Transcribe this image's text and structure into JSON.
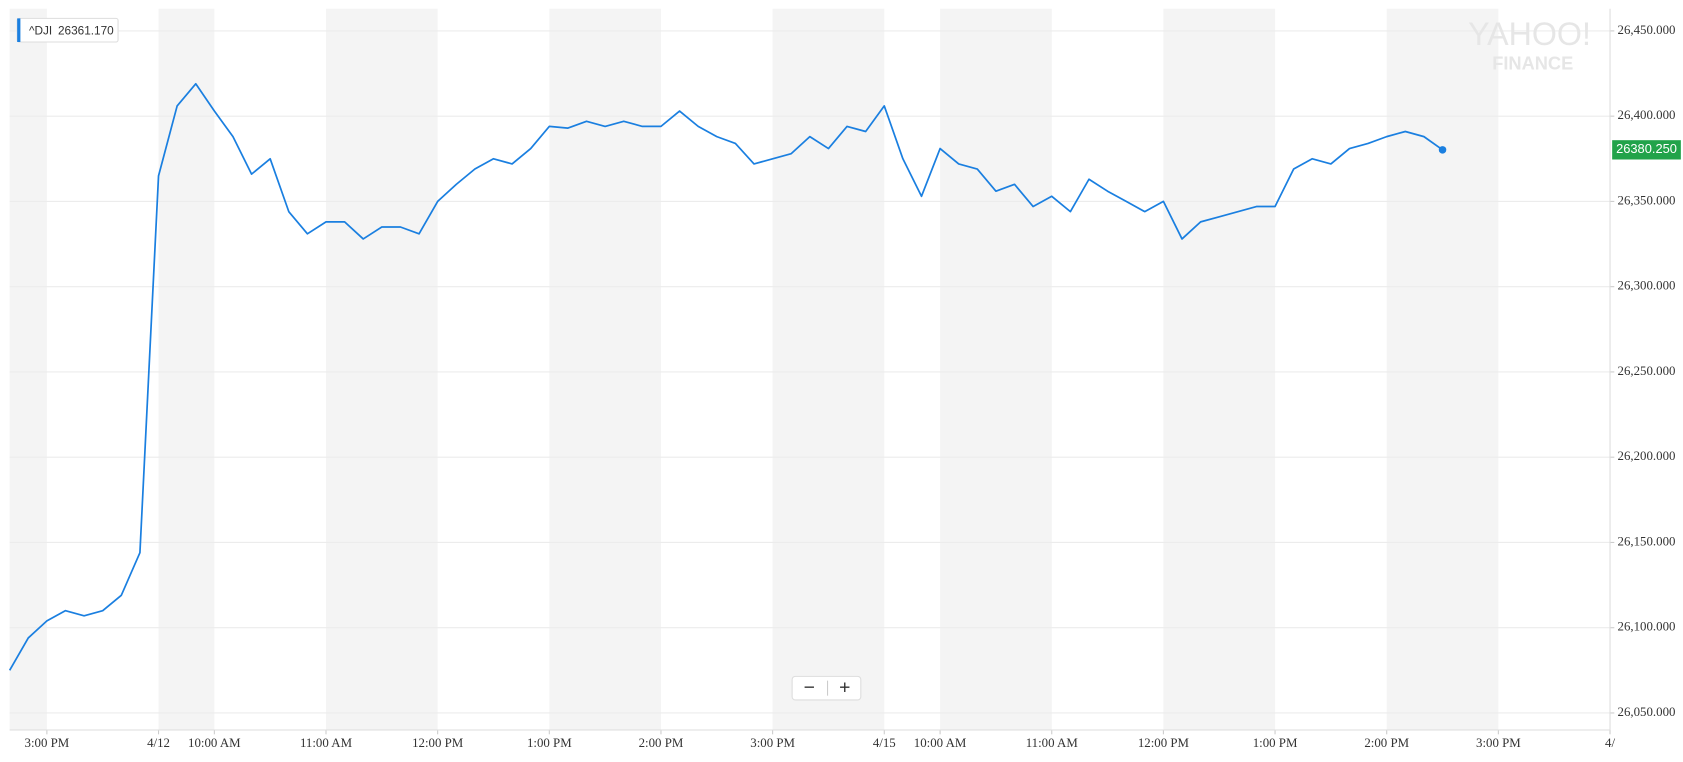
{
  "chart_data": {
    "type": "line",
    "categories": [
      null,
      null,
      "3:00 PM",
      null,
      null,
      null,
      null,
      null,
      "4/12",
      null,
      null,
      "10:00 AM",
      null,
      null,
      null,
      null,
      null,
      "11:00 AM",
      null,
      null,
      null,
      null,
      null,
      "12:00 PM",
      null,
      null,
      null,
      null,
      null,
      "1:00 PM",
      null,
      null,
      null,
      null,
      null,
      "2:00 PM",
      null,
      null,
      null,
      null,
      null,
      "3:00 PM",
      null,
      null,
      null,
      null,
      null,
      "4/15",
      null,
      null,
      "10:00 AM",
      null,
      null,
      null,
      null,
      null,
      "11:00 AM",
      null,
      null,
      null,
      null,
      null,
      "12:00 PM",
      null,
      null,
      null,
      null,
      null,
      "1:00 PM",
      null,
      null,
      null,
      null,
      null,
      "2:00 PM",
      null,
      null,
      null,
      null,
      null,
      "3:00 PM",
      null,
      null,
      null,
      null,
      null,
      "4/"
    ],
    "series": [
      {
        "name": "^DJI",
        "color": "#1a7fe0",
        "values": [
          26075,
          26094,
          26104,
          26110,
          26107,
          26110,
          26119,
          26144,
          26365,
          26406,
          26419,
          26403,
          26388,
          26366,
          26375,
          26344,
          26331,
          26338,
          26338,
          26328,
          26335,
          26335,
          26331,
          26350,
          26360,
          26369,
          26375,
          26372,
          26381,
          26394,
          26393,
          26397,
          26394,
          26397,
          26394,
          26394,
          26403,
          26394,
          26388,
          26384,
          26372,
          26375,
          26378,
          26388,
          26381,
          26394,
          26391,
          26406,
          26375,
          26353,
          26381,
          26372,
          26369,
          26356,
          26360,
          26347,
          26353,
          26344,
          26363,
          26356,
          26350,
          26344,
          26350,
          26328,
          26338,
          26341,
          26344,
          26347,
          26347,
          26369,
          26375,
          26372,
          26381,
          26384,
          26388,
          26391,
          26388,
          26380.25,
          null,
          null,
          null,
          null,
          null,
          null,
          null,
          null,
          null
        ]
      }
    ],
    "ylim": [
      26040,
      26463
    ],
    "yticks": [
      {
        "value": 26050,
        "label": "26,050.000"
      },
      {
        "value": 26100,
        "label": "26,100.000"
      },
      {
        "value": 26150,
        "label": "26,150.000"
      },
      {
        "value": 26200,
        "label": "26,200.000"
      },
      {
        "value": 26250,
        "label": "26,250.000"
      },
      {
        "value": 26300,
        "label": "26,300.000"
      },
      {
        "value": 26350,
        "label": "26,350.000"
      },
      {
        "value": 26400,
        "label": "26,400.000"
      },
      {
        "value": 26450,
        "label": "26,450.000"
      }
    ],
    "grid": true,
    "tooltip": {
      "symbol": "^DJI",
      "value": "26361.170"
    },
    "last_value_label": "26380.250",
    "watermark": [
      "YAHOO!",
      "FINANCE"
    ],
    "zoom": [
      "−",
      "+"
    ]
  }
}
